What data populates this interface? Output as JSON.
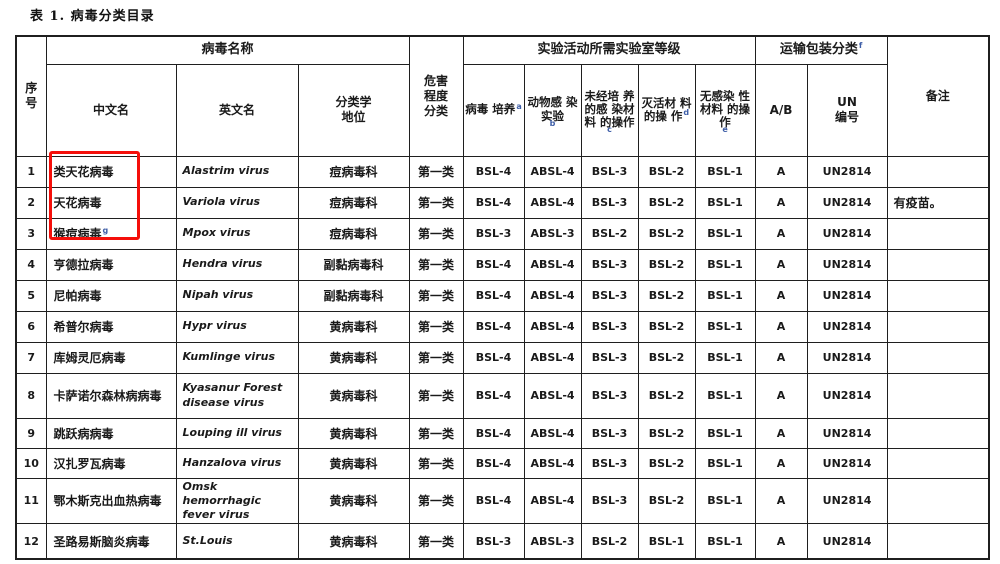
{
  "title": "表 1. 病毒分类目录",
  "annotation": {
    "type": "highlight-box",
    "color": "#f50f0a",
    "note": "red box around rows 1-3 Chinese names"
  },
  "table": {
    "header": {
      "index": "序\n号",
      "virus_name_group": "病毒名称",
      "cn_name": "中文名",
      "en_name": "英文名",
      "taxonomy": "分类学\n地位",
      "hazard": "危害\n程度\n分类",
      "lab_group": "实验活动所需实验室等级",
      "sub": [
        {
          "label": "病毒\n培养",
          "sup": "a"
        },
        {
          "label": "动物感\n染实验",
          "sup": "b"
        },
        {
          "label": "未经培\n养的感\n染材料\n的操作",
          "sup": "c"
        },
        {
          "label": "灭活材\n料的操\n作",
          "sup": "d"
        },
        {
          "label": "无感染\n性材料\n的操作",
          "sup": "e"
        }
      ],
      "transport_group": {
        "label": "运输包装分类",
        "sup": "f"
      },
      "ab": "A/B",
      "un": "UN\n编号",
      "remark": "备注"
    },
    "rows": [
      {
        "no": "1",
        "cn": "类天花病毒",
        "cn_sup": "",
        "en": "Alastrim virus",
        "tax": "痘病毒科",
        "hazard": "第一类",
        "levels": [
          "BSL-4",
          "ABSL-4",
          "BSL-3",
          "BSL-2",
          "BSL-1"
        ],
        "ab": "A",
        "un": "UN2814",
        "remark": ""
      },
      {
        "no": "2",
        "cn": "天花病毒",
        "cn_sup": "",
        "en": "Variola virus",
        "tax": "痘病毒科",
        "hazard": "第一类",
        "levels": [
          "BSL-4",
          "ABSL-4",
          "BSL-3",
          "BSL-2",
          "BSL-1"
        ],
        "ab": "A",
        "un": "UN2814",
        "remark": "有疫苗。"
      },
      {
        "no": "3",
        "cn": "猴痘病毒",
        "cn_sup": "g",
        "en": "Mpox virus",
        "tax": "痘病毒科",
        "hazard": "第一类",
        "levels": [
          "BSL-3",
          "ABSL-3",
          "BSL-2",
          "BSL-2",
          "BSL-1"
        ],
        "ab": "A",
        "un": "UN2814",
        "remark": ""
      },
      {
        "no": "4",
        "cn": "亨德拉病毒",
        "cn_sup": "",
        "en": "Hendra virus",
        "tax": "副黏病毒科",
        "hazard": "第一类",
        "levels": [
          "BSL-4",
          "ABSL-4",
          "BSL-3",
          "BSL-2",
          "BSL-1"
        ],
        "ab": "A",
        "un": "UN2814",
        "remark": ""
      },
      {
        "no": "5",
        "cn": "尼帕病毒",
        "cn_sup": "",
        "en": "Nipah virus",
        "tax": "副黏病毒科",
        "hazard": "第一类",
        "levels": [
          "BSL-4",
          "ABSL-4",
          "BSL-3",
          "BSL-2",
          "BSL-1"
        ],
        "ab": "A",
        "un": "UN2814",
        "remark": ""
      },
      {
        "no": "6",
        "cn": "希普尔病毒",
        "cn_sup": "",
        "en": "Hypr virus",
        "tax": "黄病毒科",
        "hazard": "第一类",
        "levels": [
          "BSL-4",
          "ABSL-4",
          "BSL-3",
          "BSL-2",
          "BSL-1"
        ],
        "ab": "A",
        "un": "UN2814",
        "remark": ""
      },
      {
        "no": "7",
        "cn": "库姆灵厄病毒",
        "cn_sup": "",
        "en": "Kumlinge virus",
        "tax": "黄病毒科",
        "hazard": "第一类",
        "levels": [
          "BSL-4",
          "ABSL-4",
          "BSL-3",
          "BSL-2",
          "BSL-1"
        ],
        "ab": "A",
        "un": "UN2814",
        "remark": ""
      },
      {
        "no": "8",
        "cn": "卡萨诺尔森林病病毒",
        "cn_sup": "",
        "en": "Kyasanur Forest disease virus",
        "tax": "黄病毒科",
        "hazard": "第一类",
        "levels": [
          "BSL-4",
          "ABSL-4",
          "BSL-3",
          "BSL-2",
          "BSL-1"
        ],
        "ab": "A",
        "un": "UN2814",
        "remark": ""
      },
      {
        "no": "9",
        "cn": "跳跃病病毒",
        "cn_sup": "",
        "en": "Louping ill virus",
        "tax": "黄病毒科",
        "hazard": "第一类",
        "levels": [
          "BSL-4",
          "ABSL-4",
          "BSL-3",
          "BSL-2",
          "BSL-1"
        ],
        "ab": "A",
        "un": "UN2814",
        "remark": ""
      },
      {
        "no": "10",
        "cn": "汉扎罗瓦病毒",
        "cn_sup": "",
        "en": "Hanzalova virus",
        "tax": "黄病毒科",
        "hazard": "第一类",
        "levels": [
          "BSL-4",
          "ABSL-4",
          "BSL-3",
          "BSL-2",
          "BSL-1"
        ],
        "ab": "A",
        "un": "UN2814",
        "remark": ""
      },
      {
        "no": "11",
        "cn": "鄂木斯克出血热病毒",
        "cn_sup": "",
        "en": "Omsk hemorrhagic fever virus",
        "tax": "黄病毒科",
        "hazard": "第一类",
        "levels": [
          "BSL-4",
          "ABSL-4",
          "BSL-3",
          "BSL-2",
          "BSL-1"
        ],
        "ab": "A",
        "un": "UN2814",
        "remark": ""
      },
      {
        "no": "12",
        "cn": "圣路易斯脑炎病毒",
        "cn_sup": "",
        "en": "St.Louis",
        "tax": "黄病毒科",
        "hazard": "第一类",
        "levels": [
          "BSL-3",
          "ABSL-3",
          "BSL-2",
          "BSL-1",
          "BSL-1"
        ],
        "ab": "A",
        "un": "UN2814",
        "remark": ""
      }
    ]
  }
}
